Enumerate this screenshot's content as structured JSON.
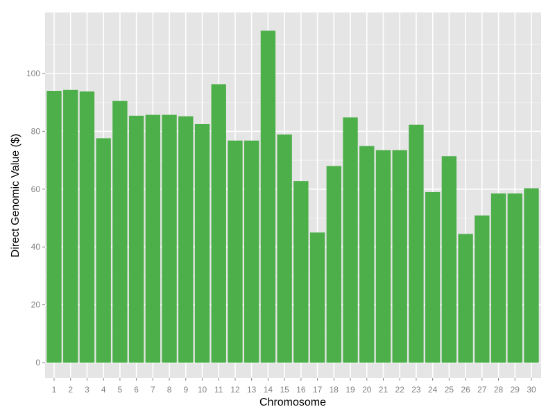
{
  "chart_data": {
    "type": "bar",
    "xlabel": "Chromosome",
    "ylabel": "Direct Genomic Value ($)",
    "categories": [
      "1",
      "2",
      "3",
      "4",
      "5",
      "6",
      "7",
      "8",
      "9",
      "10",
      "11",
      "12",
      "13",
      "14",
      "15",
      "16",
      "17",
      "18",
      "19",
      "20",
      "21",
      "22",
      "23",
      "24",
      "25",
      "26",
      "27",
      "28",
      "29",
      "30"
    ],
    "values": [
      94.0,
      94.3,
      93.8,
      77.6,
      90.5,
      85.4,
      85.7,
      85.7,
      85.2,
      82.5,
      96.3,
      76.8,
      76.8,
      114.8,
      78.9,
      62.8,
      45.0,
      68.0,
      84.8,
      74.9,
      73.5,
      73.5,
      82.3,
      59.0,
      71.4,
      44.5,
      50.9,
      58.5,
      58.5,
      60.3
    ],
    "yticks": [
      0,
      20,
      40,
      60,
      80,
      100
    ],
    "ylim": [
      -5,
      120
    ],
    "grid": true,
    "colors": {
      "bar": "#4daf4a",
      "panel_background": "#e5e5e5",
      "grid_major": "#ffffff",
      "grid_minor": "#f2f2f2",
      "tick_text": "#7f7f7f"
    }
  }
}
